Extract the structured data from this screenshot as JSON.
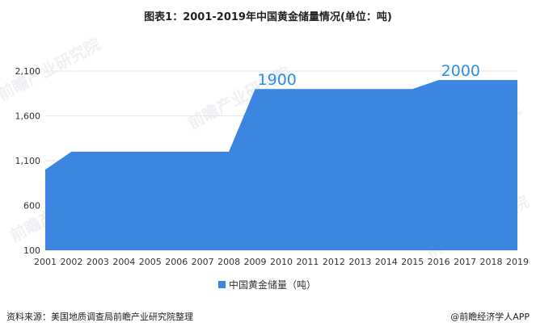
{
  "title": "图表1：2001-2019年中国黄金储量情况(单位：吨)",
  "source": "资料来源：美国地质调查局前瞻产业研究院整理",
  "brand": "@前瞻经济学人APP",
  "watermark": "前瞻产业研究院",
  "colors": {
    "area": "#3c85e0",
    "callout": "#2b8fe8",
    "grid": "#e6e6e6"
  },
  "chart_data": {
    "type": "area",
    "x": [
      "2001",
      "2002",
      "2003",
      "2004",
      "2005",
      "2006",
      "2007",
      "2008",
      "2009",
      "2010",
      "2011",
      "2012",
      "2013",
      "2014",
      "2015",
      "2016",
      "2017",
      "2018",
      "2019"
    ],
    "series": [
      {
        "name": "中国黄金储量（吨）",
        "values": [
          1000,
          1200,
          1200,
          1200,
          1200,
          1200,
          1200,
          1200,
          1900,
          1900,
          1900,
          1900,
          1900,
          1900,
          1900,
          2000,
          2000,
          2000,
          2000
        ]
      }
    ],
    "y_ticks": [
      100,
      600,
      1100,
      1600,
      2100
    ],
    "y_tick_labels": [
      "100",
      "600",
      "1,100",
      "1,600",
      "2,100"
    ],
    "ylim": [
      100,
      2100
    ],
    "annotations": [
      {
        "x": "2009",
        "label": "1900"
      },
      {
        "x": "2016",
        "label": "2000"
      }
    ],
    "legend_position": "bottom",
    "grid": true
  }
}
